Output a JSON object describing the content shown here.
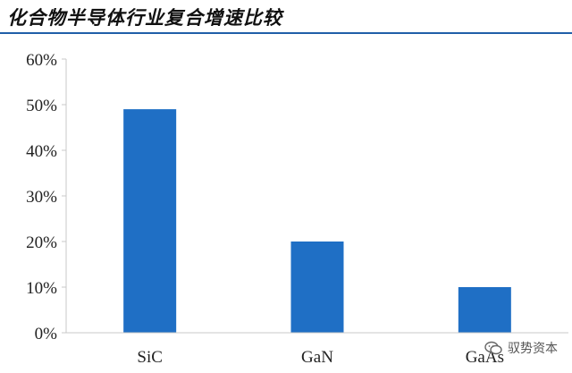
{
  "header": {
    "title": "化合物半导体行业复合增速比较"
  },
  "watermark": {
    "text": "驭势资本",
    "icon": "wechat-icon"
  },
  "colors": {
    "bar": "#1f6fc5",
    "axis": "#c8c8c8",
    "title_rule": "#1f5fa8"
  },
  "chart_data": {
    "type": "bar",
    "title": "化合物半导体行业复合增速比较",
    "categories": [
      "SiC",
      "GaN",
      "GaAs"
    ],
    "series": [
      {
        "values": [
          49,
          20,
          10
        ]
      }
    ],
    "ylim": [
      0,
      60
    ],
    "yticks": [
      "0%",
      "10%",
      "20%",
      "30%",
      "40%",
      "50%",
      "60%"
    ],
    "ylabel": "",
    "xlabel": "",
    "grid": false,
    "legend": "none"
  }
}
